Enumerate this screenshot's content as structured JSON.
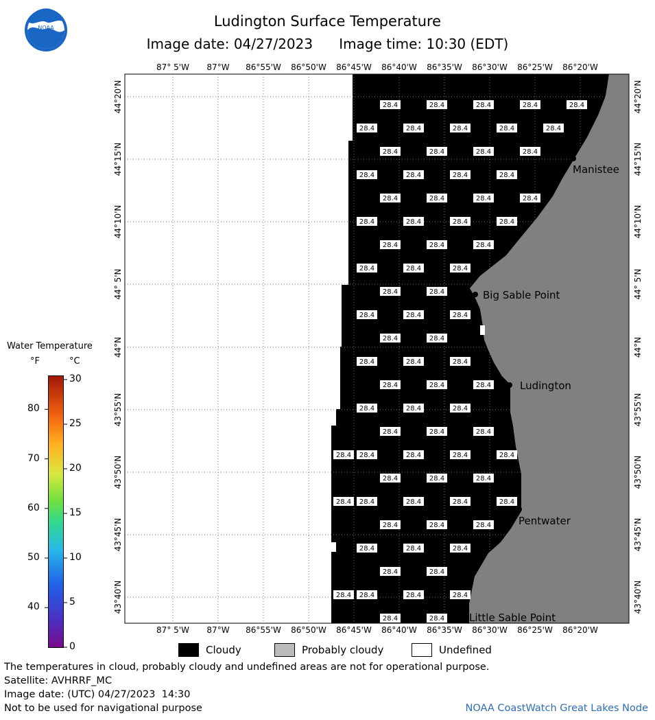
{
  "header": {
    "title": "Ludington Surface Temperature",
    "subtitle": "Image date: 04/27/2023      Image time: 10:30 (EDT)",
    "logo_text": "NOAA"
  },
  "map": {
    "longitude_labels": [
      "87° 5'W",
      "87°W",
      "86°55'W",
      "86°50'W",
      "86°45'W",
      "86°40'W",
      "86°35'W",
      "86°30'W",
      "86°25'W",
      "86°20'W"
    ],
    "latitude_labels": [
      "44°20'N",
      "44°15'N",
      "44°10'N",
      "44° 5'N",
      "44°N",
      "43°55'N",
      "43°50'N",
      "43°45'N",
      "43°40'N"
    ],
    "temperature_value": "28.4",
    "places": [
      "Manistee",
      "Big Sable Point",
      "Ludington",
      "Pentwater",
      "Little Sable Point"
    ],
    "colors": {
      "cloudy": "#000000",
      "probably_cloudy": "#808080",
      "undefined": "#ffffff"
    }
  },
  "colorbar": {
    "title": "Water Temperature",
    "unit_f": "°F",
    "unit_c": "°C",
    "f_labels": [
      "80",
      "70",
      "60",
      "50",
      "40"
    ],
    "c_labels": [
      "30",
      "25",
      "20",
      "15",
      "10",
      "5",
      "0"
    ]
  },
  "legend": {
    "cloudy": "Cloudy",
    "probably_cloudy": "Probably cloudy",
    "undefined": "Undefined"
  },
  "footer": {
    "disclaimer": "The temperatures in cloud, probably cloudy and undefined areas are not for operational purpose.",
    "satellite": "Satellite: AVHRRF_MC",
    "utc_date": "Image date: (UTC) 04/27/2023  14:30",
    "navigation_note": "Not to be used for navigational purpose",
    "credit": "NOAA CoastWatch Great Lakes Node"
  }
}
